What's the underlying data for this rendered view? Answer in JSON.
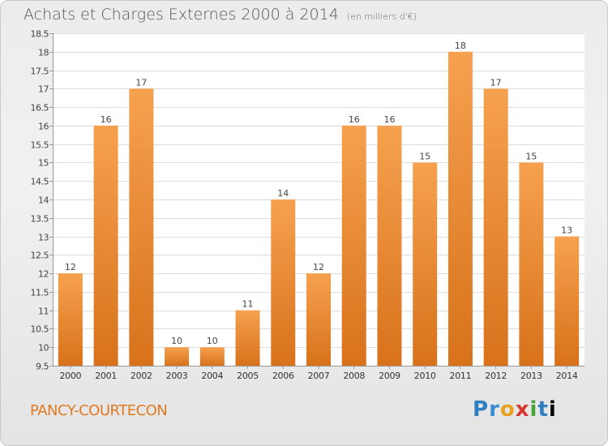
{
  "header": {
    "title": "Achats et Charges Externes 2000 à 2014",
    "unit": "(en milliers d'€)"
  },
  "footer": {
    "commune": "PANCY-COURTECON",
    "logo_letters": [
      "P",
      "r",
      "o",
      "x",
      "i",
      "t",
      "i"
    ]
  },
  "colors": {
    "bar_top": "#f6a14f",
    "bar_bottom": "#d8721b",
    "commune": "#e07b22"
  },
  "chart_data": {
    "type": "bar",
    "title": "Achats et Charges Externes 2000 à 2014",
    "subtitle": "(en milliers d'€)",
    "xlabel": "",
    "ylabel": "",
    "categories": [
      "2000",
      "2001",
      "2002",
      "2003",
      "2004",
      "2005",
      "2006",
      "2007",
      "2008",
      "2009",
      "2010",
      "2011",
      "2012",
      "2013",
      "2014"
    ],
    "values": [
      12,
      16,
      17,
      10,
      10,
      11,
      14,
      12,
      16,
      16,
      15,
      18,
      17,
      15,
      13
    ],
    "data_labels": [
      "12",
      "16",
      "17",
      "10",
      "10",
      "11",
      "14",
      "12",
      "16",
      "16",
      "15",
      "18",
      "17",
      "15",
      "13"
    ],
    "ylim": [
      9.5,
      18.5
    ],
    "yticks": [
      9.5,
      10,
      10.5,
      11,
      11.5,
      12,
      12.5,
      13,
      13.5,
      14,
      14.5,
      15,
      15.5,
      16,
      16.5,
      17,
      17.5,
      18,
      18.5
    ],
    "ytick_labels": [
      "9.5",
      "10",
      "10.5",
      "11",
      "11.5",
      "12",
      "12.5",
      "13",
      "13.5",
      "14",
      "14.5",
      "15",
      "15.5",
      "16",
      "16.5",
      "17",
      "17.5",
      "18",
      "18.5"
    ],
    "grid": true,
    "legend": "none"
  }
}
